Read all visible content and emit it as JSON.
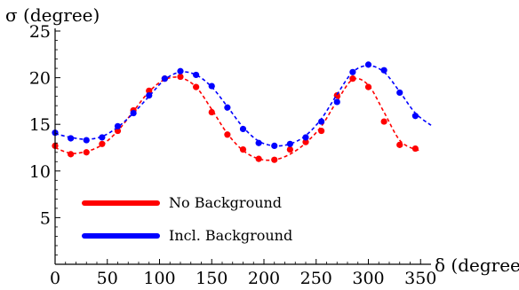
{
  "chart_data": {
    "type": "scatter",
    "ylabel": "σ (degree)",
    "xlabel": "δ (degree)",
    "xlim": [
      0,
      360
    ],
    "ylim": [
      0,
      25
    ],
    "x_ticks": [
      0,
      50,
      100,
      150,
      200,
      250,
      300,
      350
    ],
    "y_ticks": [
      5,
      10,
      15,
      20,
      25
    ],
    "grid": false,
    "legend_position": "bottom-left",
    "series": [
      {
        "name": "No Background",
        "color": "#ff0000",
        "points": {
          "x": [
            0,
            15,
            30,
            45,
            60,
            75,
            90,
            105,
            120,
            135,
            150,
            165,
            180,
            195,
            210,
            225,
            240,
            255,
            270,
            285,
            300,
            315,
            330,
            345
          ],
          "y": [
            12.7,
            11.8,
            12.0,
            12.9,
            14.3,
            16.5,
            18.6,
            19.9,
            20.1,
            19.0,
            16.3,
            13.9,
            12.3,
            11.3,
            11.2,
            12.3,
            13.1,
            14.3,
            18.1,
            19.9,
            19.0,
            15.3,
            12.8,
            12.4
          ]
        },
        "curve": {
          "x": [
            0,
            15,
            30,
            45,
            60,
            75,
            90,
            105,
            120,
            135,
            150,
            165,
            180,
            195,
            210,
            225,
            240,
            255,
            270,
            285,
            300,
            315,
            330,
            345,
            350
          ],
          "y": [
            12.5,
            11.9,
            12.1,
            12.8,
            14.3,
            16.4,
            18.5,
            19.8,
            20.0,
            19.0,
            16.6,
            14.0,
            12.2,
            11.3,
            11.2,
            11.8,
            13.0,
            14.8,
            17.5,
            19.8,
            19.2,
            16.3,
            13.3,
            12.3,
            12.3
          ]
        }
      },
      {
        "name": "Incl. Background",
        "color": "#0000ff",
        "points": {
          "x": [
            0,
            15,
            30,
            45,
            60,
            75,
            90,
            105,
            120,
            135,
            150,
            165,
            180,
            195,
            210,
            225,
            240,
            255,
            270,
            285,
            300,
            315,
            330,
            345
          ],
          "y": [
            14.1,
            13.5,
            13.3,
            13.6,
            14.8,
            16.2,
            18.1,
            19.9,
            20.7,
            20.3,
            19.1,
            16.8,
            14.5,
            13.0,
            12.7,
            12.9,
            13.6,
            15.3,
            17.4,
            20.6,
            21.4,
            20.8,
            18.4,
            15.9
          ]
        },
        "curve": {
          "x": [
            0,
            15,
            30,
            45,
            60,
            75,
            90,
            105,
            120,
            135,
            150,
            165,
            180,
            195,
            210,
            225,
            240,
            255,
            270,
            285,
            300,
            315,
            330,
            345,
            360
          ],
          "y": [
            14.0,
            13.6,
            13.4,
            13.7,
            14.7,
            16.2,
            18.0,
            19.8,
            20.6,
            20.3,
            19.0,
            16.9,
            14.7,
            13.2,
            12.7,
            12.9,
            13.8,
            15.6,
            18.2,
            20.6,
            21.3,
            20.6,
            18.5,
            16.2,
            14.9
          ]
        }
      }
    ]
  }
}
